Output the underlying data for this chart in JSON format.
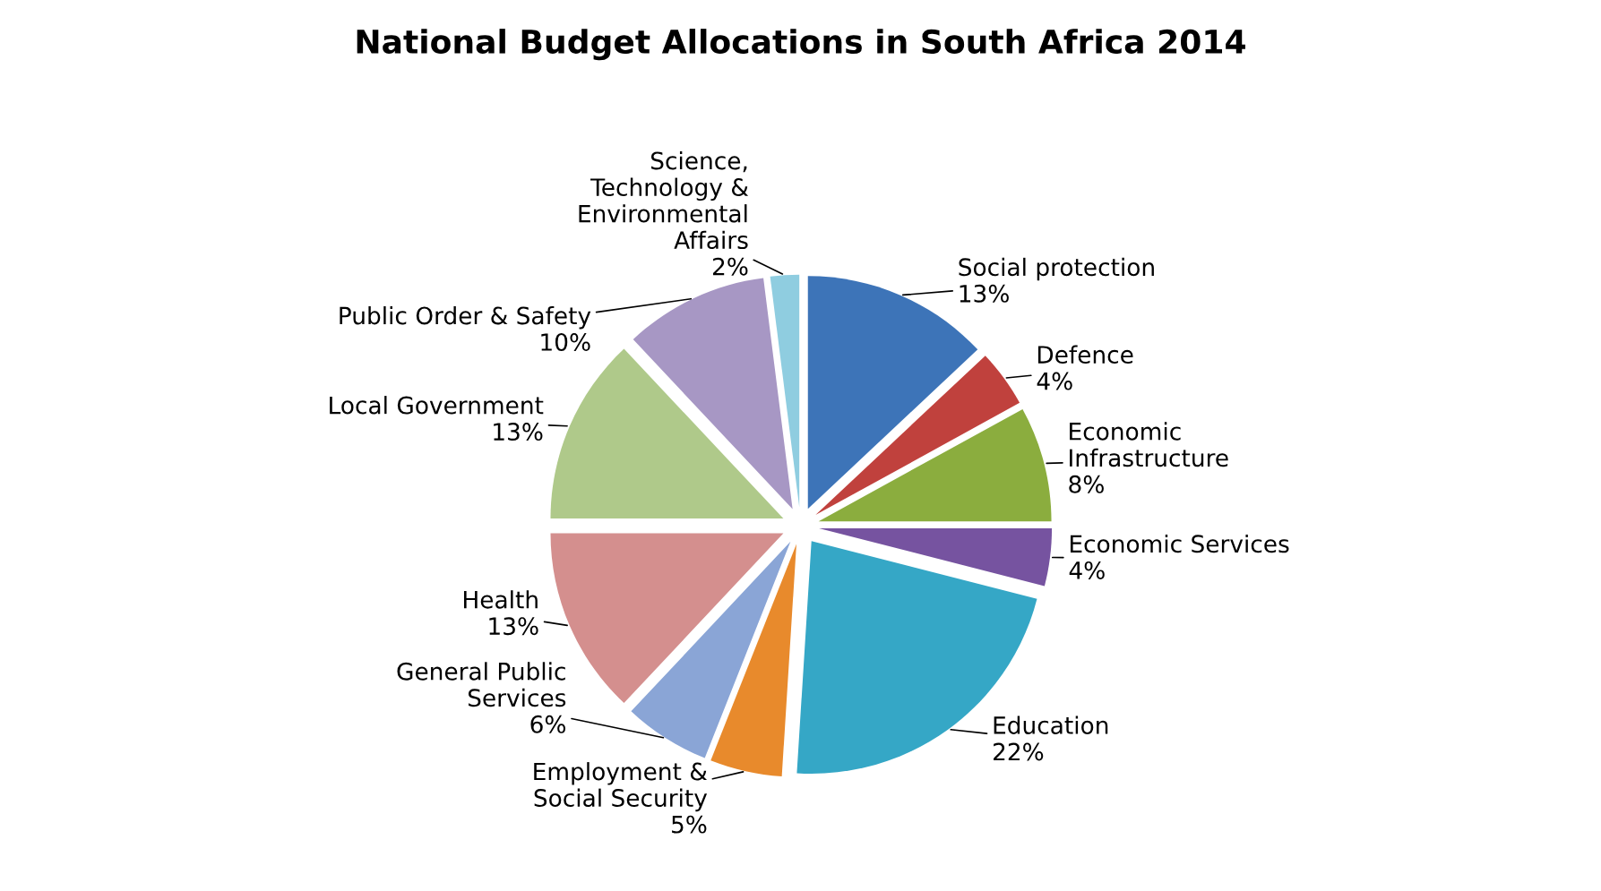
{
  "chart_data": {
    "type": "pie",
    "title": "National Budget Allocations in South Africa 2014",
    "categories": [
      "Social protection",
      "Defence",
      "Economic\nInfrastructure",
      "Economic Services",
      "Education",
      "Employment &\nSocial Security",
      "General Public\nServices",
      "Health",
      "Local Government",
      "Public Order & Safety",
      "Science,\nTechnology &\nEnvironmental\nAffairs"
    ],
    "values": [
      13,
      4,
      8,
      4,
      22,
      5,
      6,
      13,
      13,
      10,
      2
    ],
    "value_labels": [
      "13%",
      "4%",
      "8%",
      "4%",
      "22%",
      "5%",
      "6%",
      "13%",
      "13%",
      "10%",
      "2%"
    ],
    "colors": [
      "#3d74b8",
      "#c0413d",
      "#8bad3e",
      "#7653a0",
      "#35a7c6",
      "#e88a2c",
      "#8aa5d6",
      "#d48f8e",
      "#afc98a",
      "#a797c4",
      "#8fcde0"
    ]
  }
}
